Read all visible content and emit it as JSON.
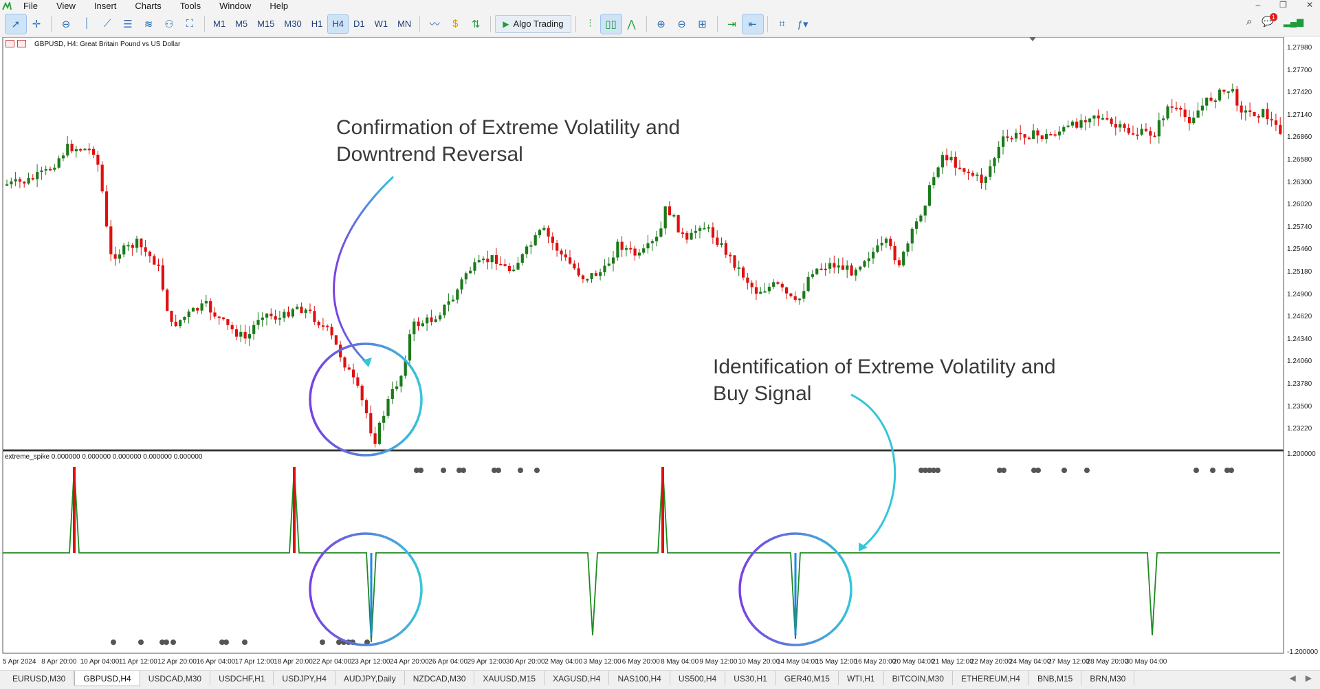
{
  "menu": {
    "items": [
      "File",
      "View",
      "Insert",
      "Charts",
      "Tools",
      "Window",
      "Help"
    ]
  },
  "toolbar": {
    "timeframes": [
      "M1",
      "M5",
      "M15",
      "M30",
      "H1",
      "H4",
      "D1",
      "W1",
      "MN"
    ],
    "active_timeframe": "H4",
    "algo_label": "Algo Trading",
    "notification_count": "1"
  },
  "chart": {
    "symbol_label": "GBPUSD, H4:  Great Britain Pound vs US Dollar",
    "indicator_label": "extreme_spike 0.000000 0.000000 0.000000 0.000000 0.000000",
    "price_levels": [
      "1.27980",
      "1.27700",
      "1.27420",
      "1.27140",
      "1.26860",
      "1.26580",
      "1.26300",
      "1.26020",
      "1.25740",
      "1.25460",
      "1.25180",
      "1.24900",
      "1.24620",
      "1.24340",
      "1.24060",
      "1.23780",
      "1.23500",
      "1.23220"
    ],
    "indicator_levels": [
      "1.200000",
      "-1.200000"
    ],
    "time_labels": [
      "5 Apr 2024",
      "8 Apr 20:00",
      "10 Apr 04:00",
      "11 Apr 12:00",
      "12 Apr 20:00",
      "16 Apr 04:00",
      "17 Apr 12:00",
      "18 Apr 20:00",
      "22 Apr 04:00",
      "23 Apr 12:00",
      "24 Apr 20:00",
      "26 Apr 04:00",
      "29 Apr 12:00",
      "30 Apr 20:00",
      "2 May 04:00",
      "3 May 12:00",
      "6 May 20:00",
      "8 May 04:00",
      "9 May 12:00",
      "10 May 20:00",
      "14 May 04:00",
      "15 May 12:00",
      "16 May 20:00",
      "20 May 04:00",
      "21 May 12:00",
      "22 May 20:00",
      "24 May 04:00",
      "27 May 12:00",
      "28 May 20:00",
      "30 May 04:00"
    ],
    "colors": {
      "bull": "#1b7a1b",
      "bear": "#e01010",
      "annotation_circle_a": "#7b3fe4",
      "annotation_circle_b": "#35c6d8",
      "indicator_line": "#1f8a1f",
      "spike_down": "#1a8ae6",
      "dot": "#555555"
    }
  },
  "annotations": {
    "top": "Confirmation of Extreme Volatility and\nDowntrend Reversal",
    "bottom": "Identification of Extreme Volatility and\nBuy Signal"
  },
  "tabs": {
    "items": [
      "EURUSD,M30",
      "GBPUSD,H4",
      "USDCAD,M30",
      "USDCHF,H1",
      "USDJPY,H4",
      "AUDJPY,Daily",
      "NZDCAD,M30",
      "XAUUSD,M15",
      "XAGUSD,H4",
      "NAS100,H4",
      "US500,H4",
      "US30,H1",
      "GER40,M15",
      "WTI,H1",
      "BITCOIN,M30",
      "ETHEREUM,H4",
      "BNB,M15",
      "BRN,M30"
    ],
    "active": "GBPUSD,H4"
  }
}
